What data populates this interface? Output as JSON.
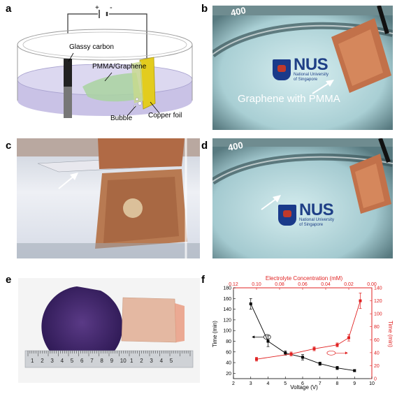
{
  "panels": {
    "a": {
      "label": "a",
      "battery": {
        "plus": "+",
        "minus": "-"
      },
      "labels": {
        "glassy_carbon": "Glassy carbon",
        "pmma_graphene": "PMMA/Graphene",
        "bubble": "Bubble",
        "copper_foil": "Copper foil"
      }
    },
    "b": {
      "label": "b",
      "beaker_mark": "400",
      "nus": {
        "name": "NUS",
        "line1": "National University",
        "line2": "of Singapore"
      },
      "caption": "Graphene with PMMA"
    },
    "c": {
      "label": "c"
    },
    "d": {
      "label": "d",
      "beaker_mark": "400",
      "nus": {
        "name": "NUS",
        "line1": "National University",
        "line2": "of Singapore"
      }
    },
    "e": {
      "label": "e",
      "ruler_numbers": [
        "1",
        "2",
        "3",
        "4",
        "5",
        "6",
        "7",
        "8",
        "9",
        "10",
        "1",
        "2",
        "3",
        "4",
        "5"
      ]
    },
    "f": {
      "label": "f"
    }
  },
  "chart_data": {
    "type": "line",
    "x_bottom_label": "Voltage (V)",
    "x_bottom_lim": [
      2,
      10
    ],
    "x_bottom_ticks": [
      "2",
      "3",
      "4",
      "5",
      "6",
      "7",
      "8",
      "9",
      "10"
    ],
    "x_top_label": "Electrolyte Concentration (mM)",
    "x_top_lim": [
      0.12,
      0.0
    ],
    "x_top_ticks": [
      "0.12",
      "0.10",
      "0.08",
      "0.06",
      "0.04",
      "0.02",
      "0.00"
    ],
    "y_left_label": "Time (min)",
    "y_left_lim": [
      10,
      180
    ],
    "y_left_ticks": [
      "20",
      "40",
      "60",
      "80",
      "100",
      "120",
      "140",
      "160",
      "180"
    ],
    "y_right_label": "Time (min)",
    "y_right_lim": [
      0,
      140
    ],
    "y_right_ticks": [
      "0",
      "20",
      "40",
      "60",
      "80",
      "100",
      "120",
      "140"
    ],
    "series": [
      {
        "axis": "bottom-left",
        "color": "#000000",
        "marker": "square",
        "x": [
          3,
          4,
          5,
          6,
          7,
          8,
          9
        ],
        "y": [
          150,
          80,
          58,
          50,
          38,
          30,
          25
        ],
        "err": [
          10,
          10,
          4,
          5,
          3,
          3,
          2
        ]
      },
      {
        "axis": "top-right",
        "color": "#e02020",
        "marker": "square",
        "x": [
          0.1,
          0.07,
          0.05,
          0.03,
          0.02,
          0.01
        ],
        "y": [
          30,
          38,
          46,
          52,
          63,
          120
        ],
        "err": [
          3,
          3,
          3,
          3,
          5,
          12
        ]
      }
    ],
    "grid": false
  }
}
